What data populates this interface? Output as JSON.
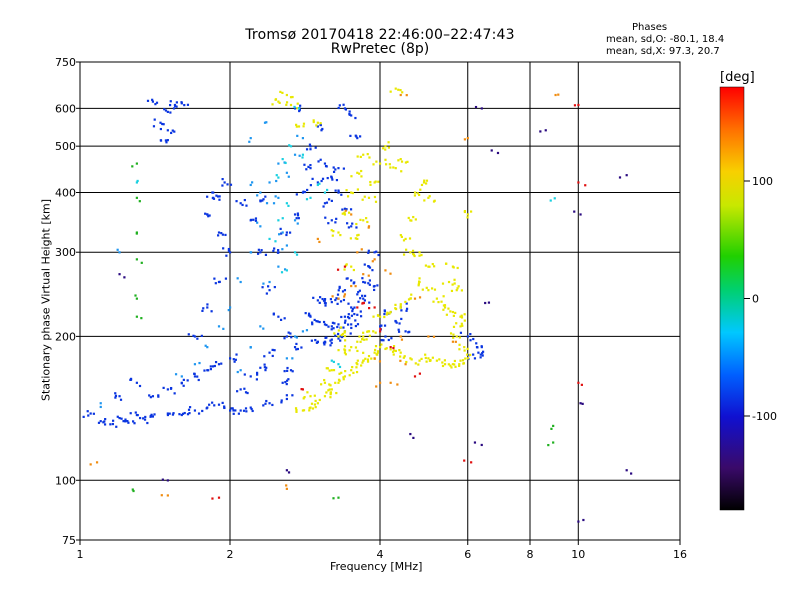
{
  "chart_data": {
    "type": "scatter",
    "title": "Tromsø 20170418 22:46:00–22:47:43",
    "subtitle": "RwPretec (8p)",
    "xlabel": "Frequency [MHz]",
    "ylabel": "Stationary phase Virtual Height [km]",
    "xscale": "log",
    "yscale": "log",
    "xlim": [
      1,
      16
    ],
    "ylim": [
      75,
      750
    ],
    "xticks": [
      1,
      2,
      4,
      6,
      8,
      10,
      16
    ],
    "yticks": [
      75,
      100,
      200,
      300,
      400,
      500,
      600,
      750
    ],
    "grid": true,
    "stats": {
      "heading": "Phases",
      "o_line": "mean, sd,O: -80.1, 18.4",
      "x_line": "mean, sd,X:  97.3, 20.7"
    },
    "colorbar": {
      "label": "[deg]",
      "range": [
        -180,
        180
      ],
      "ticks": [
        100,
        0,
        -100
      ],
      "colormap": "rainbow"
    },
    "series": [
      {
        "mode": "O",
        "phase": -80,
        "color": "#0a35e0",
        "points": [
          [
            1.05,
            138
          ],
          [
            1.1,
            133
          ],
          [
            1.15,
            131
          ],
          [
            1.2,
            135
          ],
          [
            1.25,
            132
          ],
          [
            1.3,
            137
          ],
          [
            1.35,
            134
          ],
          [
            1.4,
            136
          ],
          [
            1.5,
            138
          ],
          [
            1.6,
            137
          ],
          [
            1.7,
            140
          ],
          [
            1.8,
            142
          ],
          [
            1.9,
            144
          ],
          [
            2.0,
            140
          ],
          [
            2.1,
            140
          ],
          [
            2.2,
            142
          ],
          [
            2.4,
            145
          ],
          [
            2.6,
            148
          ],
          [
            2.1,
            155
          ],
          [
            1.4,
            150
          ],
          [
            1.5,
            155
          ],
          [
            1.6,
            160
          ],
          [
            1.7,
            165
          ],
          [
            1.8,
            170
          ],
          [
            1.9,
            175
          ],
          [
            2.0,
            180
          ],
          [
            1.3,
            160
          ],
          [
            1.2,
            150
          ],
          [
            1.7,
            200
          ],
          [
            1.8,
            230
          ],
          [
            1.9,
            260
          ],
          [
            2.0,
            300
          ],
          [
            1.9,
            330
          ],
          [
            1.8,
            360
          ],
          [
            1.85,
            400
          ],
          [
            1.95,
            420
          ],
          [
            2.1,
            380
          ],
          [
            2.2,
            350
          ],
          [
            2.3,
            300
          ],
          [
            2.4,
            250
          ],
          [
            2.5,
            220
          ],
          [
            2.6,
            200
          ],
          [
            2.7,
            190
          ],
          [
            2.65,
            170
          ],
          [
            2.55,
            160
          ],
          [
            2.3,
            172
          ],
          [
            2.4,
            185
          ],
          [
            2.2,
            165
          ],
          [
            2.5,
            300
          ],
          [
            2.6,
            330
          ],
          [
            2.7,
            360
          ],
          [
            2.8,
            400
          ],
          [
            2.9,
            450
          ],
          [
            3.0,
            420
          ],
          [
            3.1,
            380
          ],
          [
            3.2,
            350
          ],
          [
            2.9,
            500
          ],
          [
            3.0,
            550
          ],
          [
            2.7,
            600
          ],
          [
            3.1,
            460
          ],
          [
            3.2,
            430
          ],
          [
            3.3,
            400
          ],
          [
            3.4,
            370
          ],
          [
            3.5,
            340
          ],
          [
            2.9,
            220
          ],
          [
            3.0,
            215
          ],
          [
            3.1,
            212
          ],
          [
            3.2,
            210
          ],
          [
            3.3,
            212
          ],
          [
            3.4,
            220
          ],
          [
            3.5,
            230
          ],
          [
            3.6,
            245
          ],
          [
            3.7,
            260
          ],
          [
            3.8,
            280
          ],
          [
            3.9,
            300
          ],
          [
            3.0,
            195
          ],
          [
            3.1,
            195
          ],
          [
            3.2,
            197
          ],
          [
            3.3,
            198
          ],
          [
            3.4,
            205
          ],
          [
            3.5,
            212
          ],
          [
            3.6,
            222
          ],
          [
            3.7,
            240
          ],
          [
            3.9,
            255
          ],
          [
            3.0,
            238
          ],
          [
            3.1,
            235
          ],
          [
            3.2,
            236
          ],
          [
            3.3,
            240
          ],
          [
            3.4,
            250
          ],
          [
            3.5,
            262
          ],
          [
            4.0,
            210
          ],
          [
            4.1,
            200
          ],
          [
            4.3,
            215
          ],
          [
            4.5,
            205
          ],
          [
            4.4,
            230
          ],
          [
            4.2,
            225
          ],
          [
            3.5,
            580
          ],
          [
            3.4,
            600
          ],
          [
            3.3,
            450
          ],
          [
            3.6,
            520
          ],
          [
            1.45,
            560
          ],
          [
            1.5,
            590
          ],
          [
            1.55,
            610
          ],
          [
            1.6,
            615
          ],
          [
            1.4,
            620
          ],
          [
            1.5,
            540
          ],
          [
            1.5,
            515
          ],
          [
            6.4,
            190
          ],
          [
            6.3,
            185
          ],
          [
            6.2,
            180
          ],
          [
            6.0,
            200
          ],
          [
            1.85,
            390
          ],
          [
            2.3,
            385
          ]
        ]
      },
      {
        "mode": "X",
        "phase": 97,
        "color": "#e8e800",
        "points": [
          [
            2.8,
            140
          ],
          [
            2.9,
            142
          ],
          [
            3.0,
            145
          ],
          [
            3.1,
            150
          ],
          [
            3.2,
            155
          ],
          [
            3.3,
            160
          ],
          [
            3.4,
            165
          ],
          [
            3.5,
            170
          ],
          [
            3.6,
            175
          ],
          [
            3.7,
            178
          ],
          [
            3.8,
            182
          ],
          [
            3.9,
            185
          ],
          [
            4.0,
            190
          ],
          [
            4.2,
            188
          ],
          [
            4.4,
            185
          ],
          [
            4.6,
            180
          ],
          [
            4.8,
            178
          ],
          [
            5.0,
            180
          ],
          [
            5.2,
            178
          ],
          [
            5.4,
            175
          ],
          [
            5.6,
            175
          ],
          [
            5.8,
            178
          ],
          [
            6.0,
            180
          ],
          [
            3.4,
            185
          ],
          [
            3.5,
            190
          ],
          [
            3.6,
            195
          ],
          [
            3.7,
            200
          ],
          [
            3.8,
            205
          ],
          [
            4.0,
            220
          ],
          [
            4.2,
            225
          ],
          [
            4.4,
            232
          ],
          [
            4.6,
            240
          ],
          [
            4.8,
            260
          ],
          [
            5.0,
            250
          ],
          [
            5.2,
            240
          ],
          [
            5.4,
            230
          ],
          [
            5.6,
            225
          ],
          [
            5.8,
            220
          ],
          [
            5.5,
            260
          ],
          [
            5.6,
            280
          ],
          [
            5.7,
            250
          ],
          [
            5.0,
            280
          ],
          [
            4.8,
            300
          ],
          [
            4.6,
            350
          ],
          [
            4.7,
            400
          ],
          [
            4.9,
            420
          ],
          [
            5.0,
            390
          ],
          [
            3.5,
            280
          ],
          [
            3.6,
            320
          ],
          [
            3.7,
            350
          ],
          [
            3.8,
            390
          ],
          [
            3.9,
            420
          ],
          [
            4.0,
            460
          ],
          [
            4.1,
            500
          ],
          [
            3.3,
            330
          ],
          [
            3.4,
            360
          ],
          [
            3.5,
            400
          ],
          [
            3.6,
            440
          ],
          [
            3.7,
            480
          ],
          [
            4.3,
            450
          ],
          [
            4.4,
            470
          ],
          [
            3.3,
            200
          ],
          [
            3.4,
            205
          ],
          [
            4.6,
            300
          ],
          [
            4.5,
            320
          ],
          [
            5.7,
            200
          ],
          [
            5.8,
            210
          ],
          [
            5.9,
            190
          ],
          [
            3.0,
            560
          ],
          [
            2.5,
            620
          ],
          [
            2.6,
            640
          ],
          [
            4.3,
            660
          ],
          [
            2.75,
            550
          ],
          [
            6.0,
            360
          ],
          [
            2.65,
            610
          ],
          [
            3.2,
            170
          ],
          [
            2.9,
            150
          ],
          [
            3.1,
            160
          ]
        ]
      },
      {
        "mode": "O-sky",
        "phase": -45,
        "color": "#1e96f0",
        "points": [
          [
            2.1,
            170
          ],
          [
            2.2,
            190
          ],
          [
            2.3,
            210
          ],
          [
            2.4,
            260
          ],
          [
            2.5,
            280
          ],
          [
            2.6,
            310
          ],
          [
            2.7,
            350
          ],
          [
            2.5,
            390
          ],
          [
            2.4,
            420
          ],
          [
            2.6,
            440
          ],
          [
            2.7,
            480
          ],
          [
            2.8,
            520
          ],
          [
            2.5,
            460
          ],
          [
            2.45,
            380
          ],
          [
            2.55,
            330
          ],
          [
            2.3,
            340
          ],
          [
            2.2,
            300
          ],
          [
            2.1,
            260
          ],
          [
            2.0,
            230
          ],
          [
            1.9,
            210
          ],
          [
            1.8,
            190
          ],
          [
            1.7,
            175
          ],
          [
            1.6,
            165
          ],
          [
            2.7,
            200
          ],
          [
            2.8,
            205
          ],
          [
            2.2,
            415
          ],
          [
            2.3,
            400
          ],
          [
            2.35,
            560
          ],
          [
            2.2,
            520
          ],
          [
            1.2,
            300
          ],
          [
            1.1,
            145
          ],
          [
            2.6,
            180
          ]
        ]
      },
      {
        "mode": "O-cyan",
        "phase": -15,
        "color": "#18d0e0",
        "points": [
          [
            2.5,
            350
          ],
          [
            2.6,
            380
          ],
          [
            2.5,
            430
          ],
          [
            2.55,
            470
          ],
          [
            2.65,
            500
          ],
          [
            2.4,
            320
          ],
          [
            2.75,
            600
          ],
          [
            2.8,
            480
          ],
          [
            3.3,
            175
          ],
          [
            3.2,
            178
          ],
          [
            3.0,
            415
          ],
          [
            3.1,
            400
          ],
          [
            2.9,
            390
          ],
          [
            2.6,
            275
          ],
          [
            2.7,
            300
          ],
          [
            8.8,
            385
          ],
          [
            1.3,
            420
          ]
        ]
      },
      {
        "mode": "mixed-green",
        "phase": 10,
        "color": "#20b020",
        "points": [
          [
            1.3,
            460
          ],
          [
            1.3,
            390
          ],
          [
            1.3,
            330
          ],
          [
            1.3,
            290
          ],
          [
            1.3,
            240
          ],
          [
            1.3,
            220
          ],
          [
            1.28,
            95
          ],
          [
            8.9,
            120
          ],
          [
            8.9,
            130
          ],
          [
            3.3,
            92
          ]
        ]
      },
      {
        "mode": "X-orange",
        "phase": 140,
        "color": "#f08c10",
        "points": [
          [
            3.3,
            240
          ],
          [
            3.4,
            245
          ],
          [
            3.5,
            255
          ],
          [
            3.7,
            270
          ],
          [
            3.9,
            290
          ],
          [
            4.1,
            275
          ],
          [
            4.4,
            200
          ],
          [
            4.5,
            175
          ],
          [
            4.2,
            160
          ],
          [
            4.0,
            160
          ],
          [
            3.9,
            180
          ],
          [
            3.6,
            300
          ],
          [
            3.8,
            340
          ],
          [
            4.7,
            240
          ],
          [
            5.0,
            200
          ],
          [
            5.6,
            195
          ],
          [
            6.0,
            520
          ],
          [
            9.0,
            640
          ],
          [
            4.4,
            640
          ],
          [
            1.5,
            93
          ],
          [
            1.05,
            108
          ],
          [
            2.6,
            96
          ],
          [
            3.0,
            320
          ],
          [
            3.5,
            360
          ]
        ]
      },
      {
        "mode": "X-red",
        "phase": 170,
        "color": "#e01010",
        "points": [
          [
            3.6,
            230
          ],
          [
            3.7,
            235
          ],
          [
            3.9,
            230
          ],
          [
            4.0,
            205
          ],
          [
            4.2,
            190
          ],
          [
            4.7,
            165
          ],
          [
            5.9,
            110
          ],
          [
            10.0,
            610
          ],
          [
            10.0,
            160
          ],
          [
            10.0,
            420
          ],
          [
            1.9,
            92
          ],
          [
            2.8,
            155
          ],
          [
            3.4,
            280
          ]
        ]
      },
      {
        "mode": "dark",
        "phase": -120,
        "color": "#2a0a80",
        "points": [
          [
            1.5,
            100
          ],
          [
            4.6,
            125
          ],
          [
            6.2,
            120
          ],
          [
            8.6,
            540
          ],
          [
            10.0,
            82
          ],
          [
            12.5,
            105
          ],
          [
            12.5,
            435
          ],
          [
            6.5,
            235
          ],
          [
            6.7,
            490
          ],
          [
            10.1,
            360
          ],
          [
            1.2,
            270
          ],
          [
            6.4,
            600
          ],
          [
            10.1,
            145
          ],
          [
            2.6,
            105
          ]
        ]
      }
    ]
  }
}
